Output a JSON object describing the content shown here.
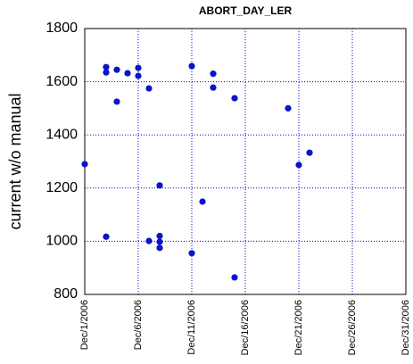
{
  "chart_data": {
    "type": "scatter",
    "title": "ABORT_DAY_LER",
    "y_label": "current w/o manual",
    "color": "#0a14c8",
    "grid": true,
    "x": [
      "2006-12-01",
      "2006-12-03",
      "2006-12-03",
      "2006-12-03",
      "2006-12-04",
      "2006-12-04",
      "2006-12-05",
      "2006-12-06",
      "2006-12-06",
      "2006-12-07",
      "2006-12-07",
      "2006-12-08",
      "2006-12-08",
      "2006-12-08",
      "2006-12-08",
      "2006-12-11",
      "2006-12-11",
      "2006-12-12",
      "2006-12-13",
      "2006-12-13",
      "2006-12-15",
      "2006-12-15",
      "2006-12-20",
      "2006-12-21",
      "2006-12-22"
    ],
    "values": [
      1290,
      1655,
      1635,
      1017,
      1645,
      1525,
      1632,
      1652,
      1622,
      1575,
      1001,
      1210,
      1020,
      998,
      975,
      1659,
      955,
      1149,
      1630,
      1578,
      1538,
      864,
      1500,
      1287,
      1333
    ],
    "xlim": [
      "2006-12-01",
      "2006-12-31"
    ],
    "xticks": [
      {
        "value": "2006-12-01",
        "label": "Dec/1/2006"
      },
      {
        "value": "2006-12-06",
        "label": "Dec/6/2006"
      },
      {
        "value": "2006-12-11",
        "label": "Dec/11/2006"
      },
      {
        "value": "2006-12-16",
        "label": "Dec/16/2006"
      },
      {
        "value": "2006-12-21",
        "label": "Dec/21/2006"
      },
      {
        "value": "2006-12-26",
        "label": "Dec/26/2006"
      },
      {
        "value": "2006-12-31",
        "label": "Dec/31/2006"
      }
    ],
    "ylim": [
      800,
      1800
    ],
    "yticks": [
      800,
      1000,
      1200,
      1400,
      1600,
      1800
    ]
  }
}
